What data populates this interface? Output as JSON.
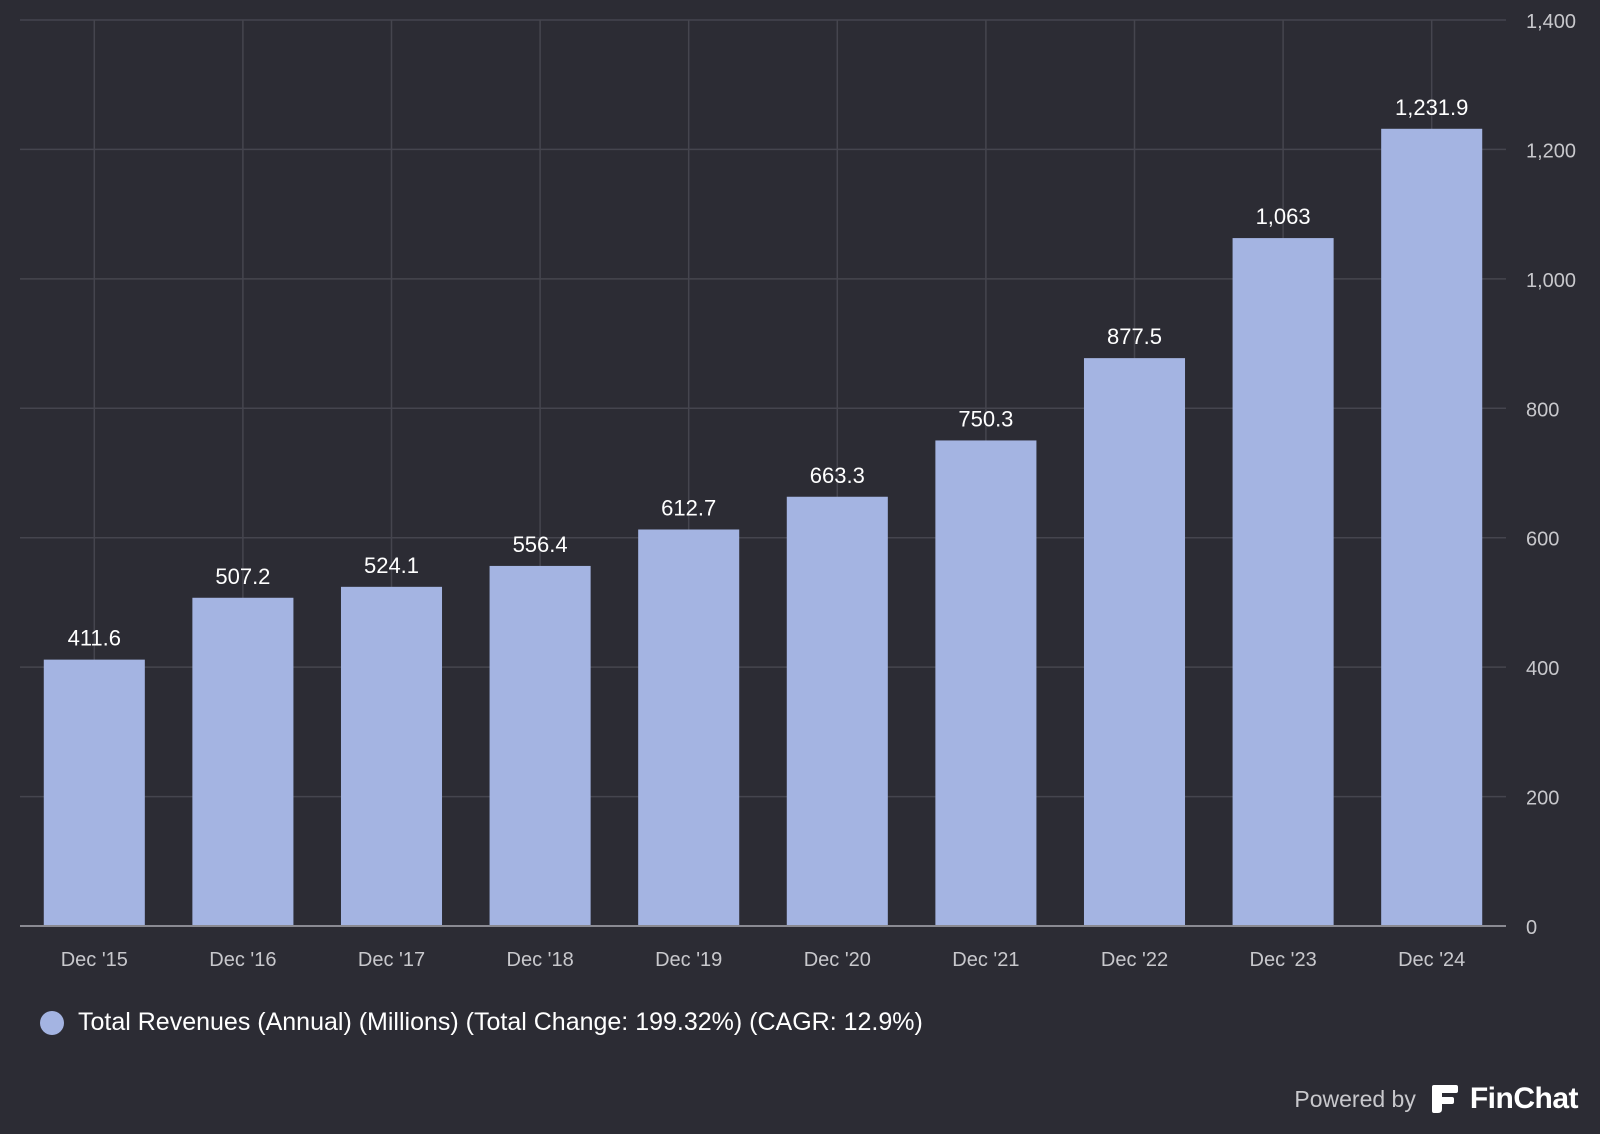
{
  "chart_data": {
    "type": "bar",
    "categories": [
      "Dec '15",
      "Dec '16",
      "Dec '17",
      "Dec '18",
      "Dec '19",
      "Dec '20",
      "Dec '21",
      "Dec '22",
      "Dec '23",
      "Dec '24"
    ],
    "values": [
      411.6,
      507.2,
      524.1,
      556.4,
      612.7,
      663.3,
      750.3,
      877.5,
      1063,
      1231.9
    ],
    "value_labels": [
      "411.6",
      "507.2",
      "524.1",
      "556.4",
      "612.7",
      "663.3",
      "750.3",
      "877.5",
      "1,063",
      "1,231.9"
    ],
    "ylim": [
      0,
      1400
    ],
    "y_ticks": [
      0,
      200,
      400,
      600,
      800,
      1000,
      1200,
      1400
    ],
    "y_tick_labels": [
      "0",
      "200",
      "400",
      "600",
      "800",
      "1,000",
      "1,200",
      "1,400"
    ],
    "y_axis_side": "right",
    "grid": true,
    "legend_position": "bottom-left",
    "series": [
      {
        "name": "Total Revenues (Annual) (Millions) (Total Change: 199.32%) (CAGR: 12.9%)",
        "color": "#a4b4e2"
      }
    ]
  },
  "colors": {
    "background": "#2c2c34",
    "bar": "#a4b4e2",
    "grid": "#45454e",
    "axis": "#8a8a92",
    "tick_text": "#c8c8cc",
    "label_text": "#ffffff"
  },
  "branding": {
    "powered_by": "Powered by",
    "name": "FinChat",
    "icon": "finchat-logo-icon"
  }
}
